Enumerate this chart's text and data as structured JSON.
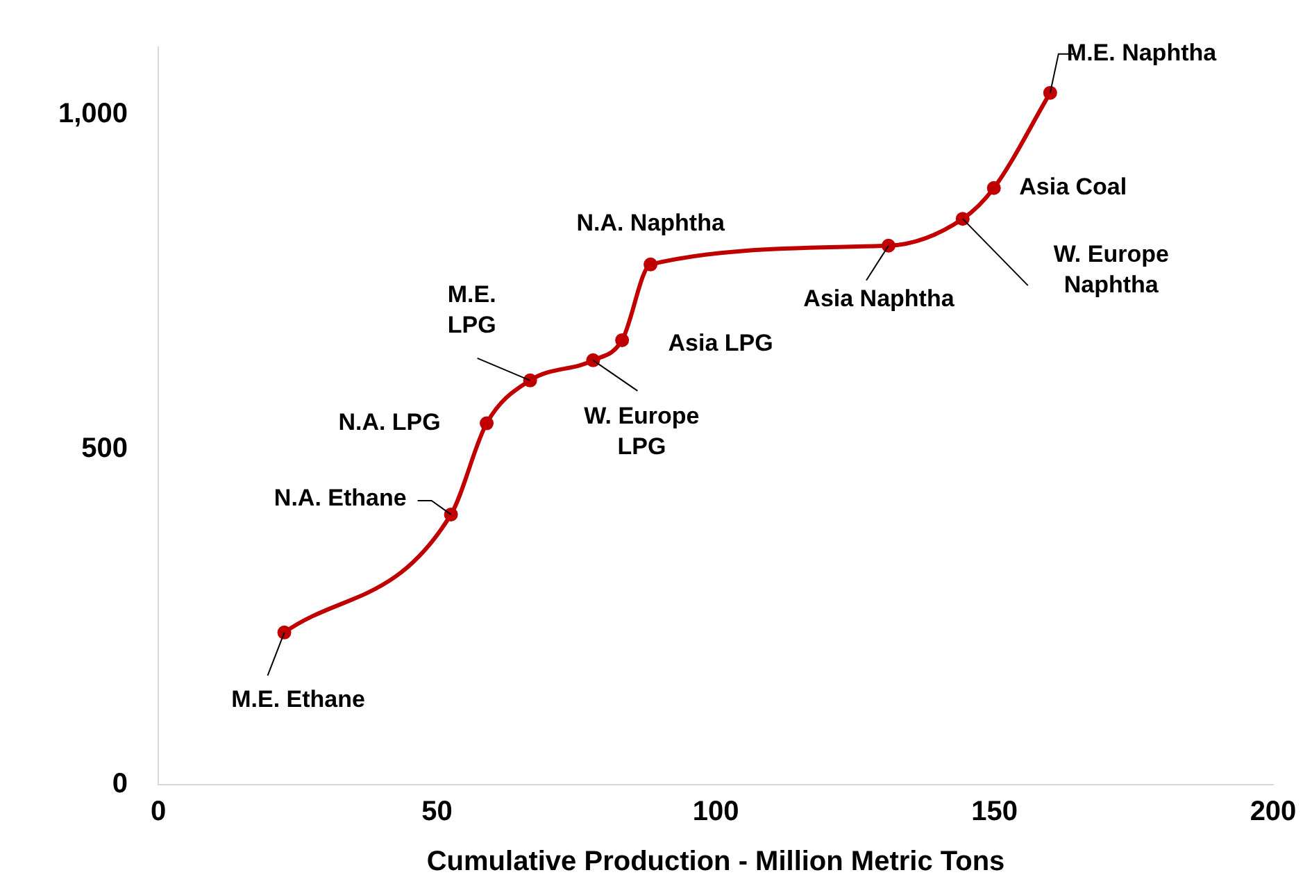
{
  "chart_data": {
    "type": "line",
    "xlabel": "Cumulative Production - Million Metric Tons",
    "x": [
      22.6,
      52.5,
      58.9,
      66.7,
      78.0,
      83.2,
      88.3,
      131.0,
      144.3,
      149.9,
      160.0
    ],
    "series": [
      {
        "color": "#c00000",
        "values": [
          227,
          403,
          539,
          603,
          633,
          663,
          776,
          804,
          844,
          890,
          1032
        ]
      }
    ],
    "xlim": [
      0,
      200
    ],
    "xticks": [
      0,
      50,
      100,
      150,
      200
    ],
    "ylim": [
      0,
      1100
    ],
    "yticks": [
      0,
      500,
      {
        "value": 1000,
        "label": "1,000"
      }
    ],
    "grid": false,
    "legend": false,
    "marker": "circle",
    "line_style": "solid",
    "annotations": [
      {
        "text": "M.E. Ethane",
        "x": 22.6,
        "y": 227
      },
      {
        "text": "N.A. Ethane",
        "x": 52.5,
        "y": 403
      },
      {
        "text": "N.A. LPG",
        "x": 58.9,
        "y": 539
      },
      {
        "text": "M.E. LPG",
        "x": 66.7,
        "y": 603
      },
      {
        "text": "W. Europe LPG",
        "x": 78.0,
        "y": 633
      },
      {
        "text": "Asia LPG",
        "x": 83.2,
        "y": 663
      },
      {
        "text": "N.A. Naphtha",
        "x": 88.3,
        "y": 776
      },
      {
        "text": "Asia Naphtha",
        "x": 131.0,
        "y": 804
      },
      {
        "text": "W. Europe Naphtha",
        "x": 144.3,
        "y": 844
      },
      {
        "text": "Asia Coal",
        "x": 149.9,
        "y": 890
      },
      {
        "text": "M.E. Naphtha",
        "x": 160.0,
        "y": 1032
      }
    ]
  }
}
